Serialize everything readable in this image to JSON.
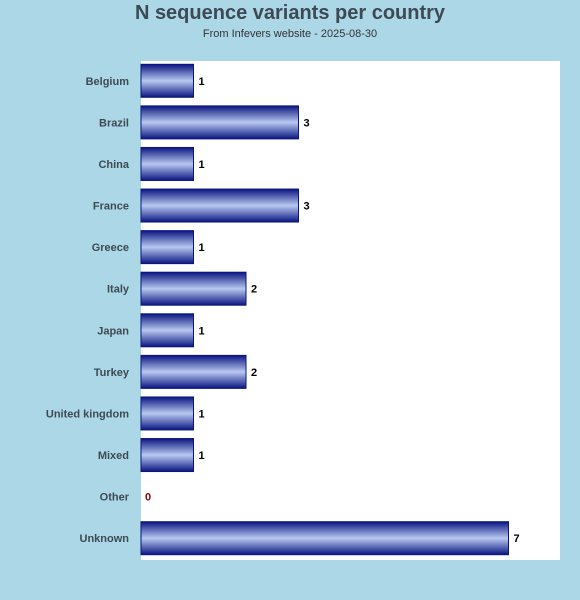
{
  "chart_data": {
    "type": "bar",
    "orientation": "horizontal",
    "title": "N sequence variants per country",
    "subtitle": "From Infevers website - 2025-08-30",
    "categories": [
      "Belgium",
      "Brazil",
      "China",
      "France",
      "Greece",
      "Italy",
      "Japan",
      "Turkey",
      "United kingdom",
      "Mixed",
      "Other",
      "Unknown"
    ],
    "values": [
      1,
      3,
      1,
      3,
      1,
      2,
      1,
      2,
      1,
      1,
      0,
      7
    ],
    "xlim": [
      0,
      8
    ],
    "grid": false,
    "colors": {
      "bar_dark": "#0a1580",
      "bar_light": "#b8c8f0",
      "zero_label": "#8b0000",
      "background": "#acd7e6",
      "plot_background": "#ffffff"
    }
  }
}
